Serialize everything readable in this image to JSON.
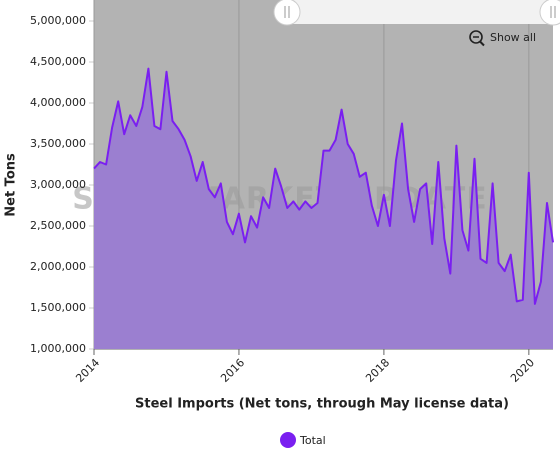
{
  "chart_data": {
    "type": "area",
    "watermark": "STEEL MARKET UPDATE",
    "button": "Show all",
    "x_label": "Steel Imports (Net tons, through May license data)",
    "y_label": "Net Tons",
    "categories": [
      "2014",
      null,
      null,
      null,
      null,
      null,
      null,
      null,
      null,
      null,
      null,
      null,
      null,
      null,
      null,
      null,
      null,
      null,
      null,
      null,
      null,
      null,
      null,
      null,
      "2016",
      null,
      null,
      null,
      null,
      null,
      null,
      null,
      null,
      null,
      null,
      null,
      null,
      null,
      null,
      null,
      null,
      null,
      null,
      null,
      null,
      null,
      null,
      null,
      "2018",
      null,
      null,
      null,
      null,
      null,
      null,
      null,
      null,
      null,
      null,
      null,
      null,
      null,
      null,
      null,
      null,
      null,
      null,
      null,
      null,
      null,
      null,
      null,
      "2020",
      null,
      null,
      null,
      null
    ],
    "series": [
      {
        "name": "Total",
        "color": "#7a1ff0",
        "fill": "#9b7fd0",
        "values": [
          3200000,
          3280000,
          3250000,
          3700000,
          4020000,
          3620000,
          3850000,
          3720000,
          3950000,
          4420000,
          3720000,
          3680000,
          4380000,
          3780000,
          3680000,
          3550000,
          3350000,
          3050000,
          3280000,
          2950000,
          2850000,
          3020000,
          2550000,
          2400000,
          2650000,
          2300000,
          2620000,
          2480000,
          2850000,
          2720000,
          3200000,
          2980000,
          2720000,
          2800000,
          2700000,
          2800000,
          2720000,
          2780000,
          3420000,
          3420000,
          3550000,
          3920000,
          3500000,
          3380000,
          3100000,
          3150000,
          2750000,
          2500000,
          2880000,
          2500000,
          3300000,
          3750000,
          2950000,
          2550000,
          2950000,
          3020000,
          2280000,
          3280000,
          2350000,
          1920000,
          3480000,
          2450000,
          2200000,
          3320000,
          2100000,
          2050000,
          3020000,
          2050000,
          1950000,
          2150000,
          1580000,
          1600000,
          3150000,
          1550000,
          1820000,
          2780000,
          2300000
        ]
      }
    ],
    "ylim": [
      1000000,
      5000000
    ],
    "yticks": [
      {
        "value": 1000000,
        "label": "1,000,000"
      },
      {
        "value": 1500000,
        "label": "1,500,000"
      },
      {
        "value": 2000000,
        "label": "2,000,000"
      },
      {
        "value": 2500000,
        "label": "2,500,000"
      },
      {
        "value": 3000000,
        "label": "3,000,000"
      },
      {
        "value": 3500000,
        "label": "3,500,000"
      },
      {
        "value": 4000000,
        "label": "4,000,000"
      },
      {
        "value": 4500000,
        "label": "4,500,000"
      },
      {
        "value": 5000000,
        "label": "5,000,000"
      }
    ],
    "grid_x": true,
    "plot_background": "#b3b3b3"
  }
}
